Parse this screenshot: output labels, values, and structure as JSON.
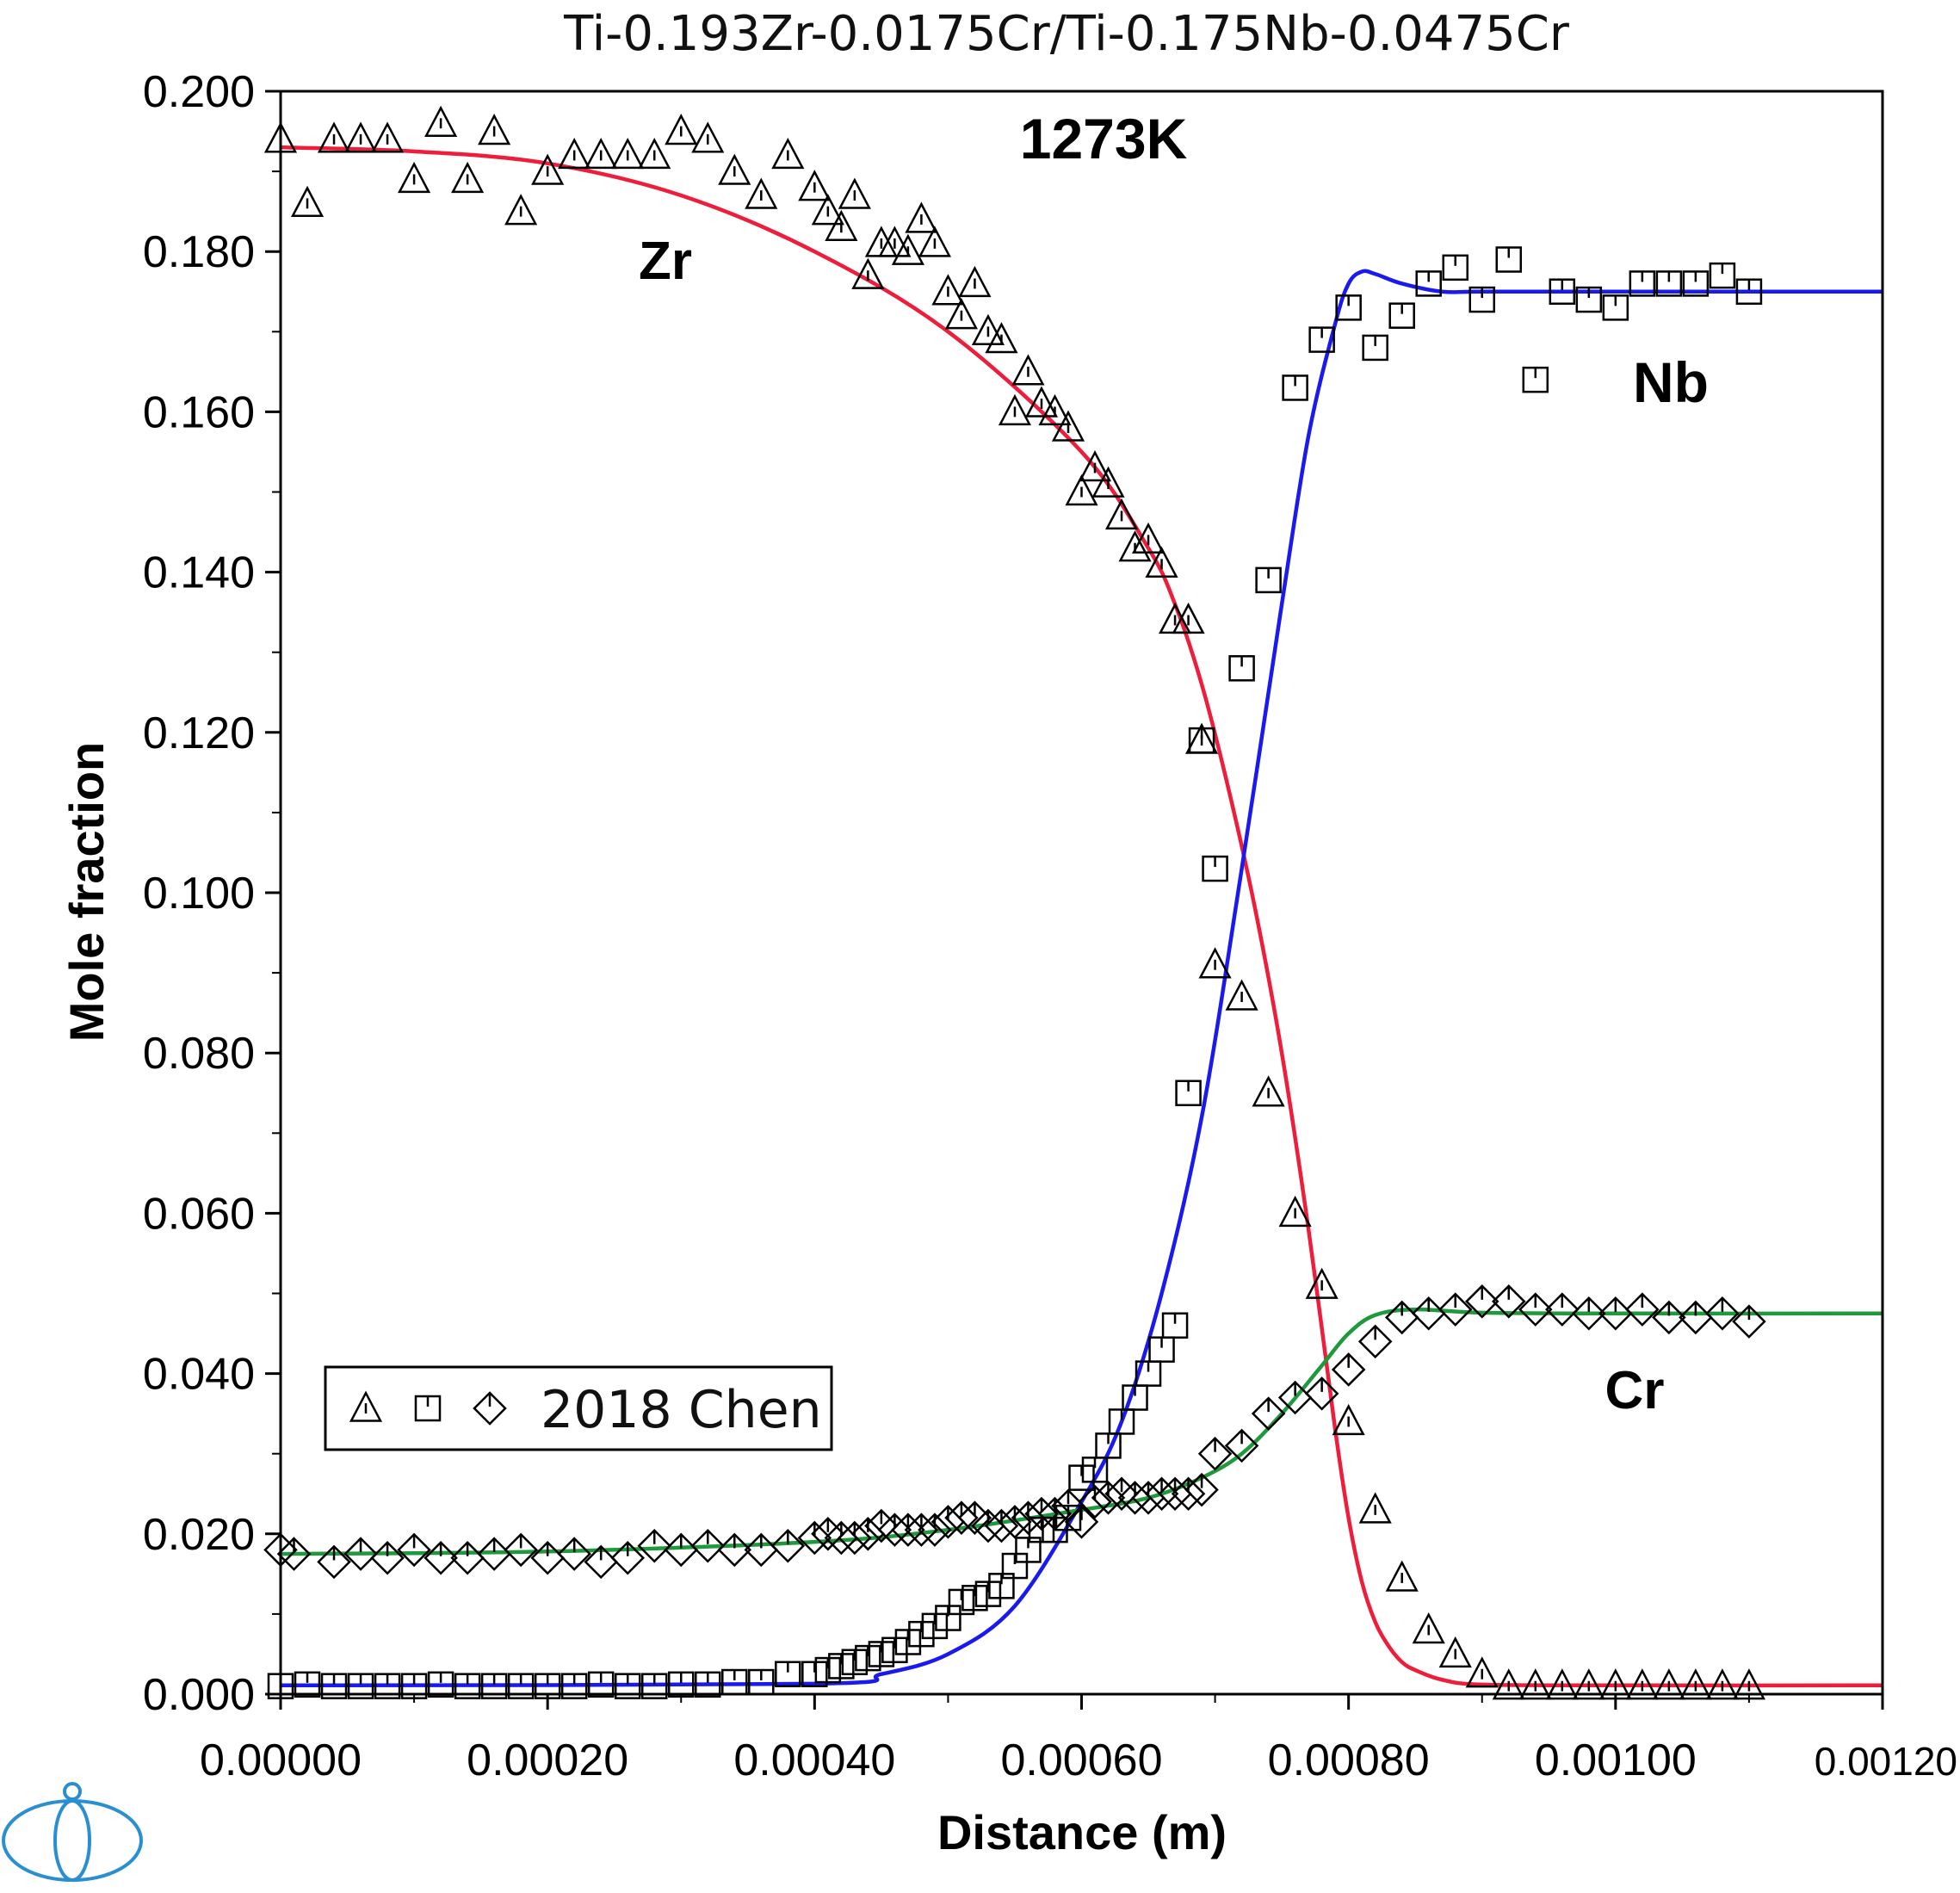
{
  "chart_data": {
    "type": "scatter",
    "title": "Ti-0.193Zr-0.0175Cr/Ti-0.175Nb-0.0475Cr",
    "temperature_label": "1273K",
    "xlabel": "Distance (m)",
    "ylabel": "Mole fraction",
    "xlim": [
      0,
      0.0012
    ],
    "ylim": [
      0,
      0.2
    ],
    "x_ticks": [
      "0.00000",
      "0.00020",
      "0.00040",
      "0.00060",
      "0.00080",
      "0.00100",
      "0.00120"
    ],
    "y_ticks": [
      "0.000",
      "0.020",
      "0.040",
      "0.060",
      "0.080",
      "0.100",
      "0.120",
      "0.140",
      "0.160",
      "0.180",
      "0.200"
    ],
    "grid": false,
    "legend": {
      "placement": "bottom-left",
      "label": "2018 Chen",
      "markers": [
        "triangle",
        "square",
        "diamond"
      ]
    },
    "colors": {
      "Zr": "#ee1d3c",
      "Nb": "#1a1aee",
      "Cr": "#1e9a3c",
      "markers": "#000000"
    },
    "annotations": [
      "Zr",
      "Nb",
      "Cr"
    ],
    "calculated_curves": [
      {
        "label": "Zr",
        "color": "#ee1d3c",
        "x": [
          0,
          0.0001,
          0.0002,
          0.0003,
          0.0004,
          0.0005,
          0.0006,
          0.00065,
          0.00067,
          0.00069,
          0.00071,
          0.00073,
          0.00075,
          0.00077,
          0.00079,
          0.0008,
          0.00081,
          0.00082,
          0.00083,
          0.00084,
          0.00085,
          0.00087,
          0.0009,
          0.001,
          0.0012
        ],
        "y": [
          0.193,
          0.1925,
          0.191,
          0.187,
          0.18,
          0.17,
          0.155,
          0.143,
          0.136,
          0.126,
          0.113,
          0.098,
          0.08,
          0.058,
          0.033,
          0.022,
          0.014,
          0.009,
          0.006,
          0.004,
          0.003,
          0.0018,
          0.0012,
          0.0011,
          0.0011
        ]
      },
      {
        "label": "Nb",
        "color": "#1a1aee",
        "x": [
          0,
          0.0004,
          0.00045,
          0.0005,
          0.00055,
          0.0006,
          0.00063,
          0.00066,
          0.00069,
          0.00072,
          0.00075,
          0.00077,
          0.00079,
          0.0008,
          0.00081,
          0.00082,
          0.00084,
          0.00087,
          0.0009,
          0.001,
          0.0012
        ],
        "y": [
          0.0011,
          0.0013,
          0.0025,
          0.005,
          0.011,
          0.024,
          0.034,
          0.05,
          0.072,
          0.103,
          0.136,
          0.157,
          0.171,
          0.176,
          0.1775,
          0.1772,
          0.176,
          0.175,
          0.175,
          0.175,
          0.175
        ]
      },
      {
        "label": "Cr",
        "color": "#1e9a3c",
        "x": [
          0,
          0.0002,
          0.0004,
          0.0005,
          0.0006,
          0.00065,
          0.00069,
          0.00072,
          0.00075,
          0.00078,
          0.0008,
          0.00082,
          0.00085,
          0.0009,
          0.001,
          0.0012
        ],
        "y": [
          0.0175,
          0.0178,
          0.019,
          0.0205,
          0.023,
          0.0245,
          0.027,
          0.03,
          0.035,
          0.041,
          0.045,
          0.0473,
          0.048,
          0.0476,
          0.0475,
          0.0475
        ]
      }
    ],
    "series": [
      {
        "marker": "triangle",
        "element": "Zr",
        "x": [
          0,
          2e-05,
          4e-05,
          6e-05,
          8e-05,
          0.0001,
          0.00012,
          0.00014,
          0.00016,
          0.00018,
          0.0002,
          0.00022,
          0.00024,
          0.00026,
          0.00028,
          0.0003,
          0.00032,
          0.00034,
          0.00036,
          0.00038,
          0.0004,
          0.00041,
          0.00042,
          0.00043,
          0.00044,
          0.00045,
          0.00046,
          0.00047,
          0.00048,
          0.00049,
          0.0005,
          0.00051,
          0.00052,
          0.00053,
          0.00054,
          0.00055,
          0.00056,
          0.00057,
          0.00058,
          0.00059,
          0.0006,
          0.00061,
          0.00062,
          0.00063,
          0.00064,
          0.00065,
          0.00066,
          0.00067,
          0.00068,
          0.00069,
          0.0007,
          0.00072,
          0.00074,
          0.00076,
          0.00078,
          0.0008,
          0.00082,
          0.00084,
          0.00086,
          0.00088,
          0.0009,
          0.00092,
          0.00094,
          0.00096,
          0.00098,
          0.001,
          0.00102,
          0.00104,
          0.00106,
          0.00108,
          0.0011
        ],
        "y": [
          0.194,
          0.186,
          0.194,
          0.194,
          0.194,
          0.189,
          0.196,
          0.189,
          0.195,
          0.185,
          0.19,
          0.192,
          0.192,
          0.192,
          0.192,
          0.195,
          0.194,
          0.19,
          0.187,
          0.192,
          0.188,
          0.185,
          0.183,
          0.187,
          0.177,
          0.181,
          0.181,
          0.18,
          0.184,
          0.181,
          0.175,
          0.172,
          0.176,
          0.17,
          0.169,
          0.16,
          0.165,
          0.161,
          0.16,
          0.158,
          0.15,
          0.153,
          0.151,
          0.147,
          0.143,
          0.144,
          0.141,
          0.134,
          0.134,
          0.119,
          0.091,
          0.087,
          0.075,
          0.06,
          0.051,
          0.034,
          0.023,
          0.0145,
          0.008,
          0.005,
          0.0025,
          0.001,
          0.001,
          0.001,
          0.001,
          0.001,
          0.001,
          0.001,
          0.001,
          0.001,
          0.001
        ]
      },
      {
        "marker": "square",
        "element": "Nb",
        "x": [
          0,
          2e-05,
          4e-05,
          6e-05,
          8e-05,
          0.0001,
          0.00012,
          0.00014,
          0.00016,
          0.00018,
          0.0002,
          0.00022,
          0.00024,
          0.00026,
          0.00028,
          0.0003,
          0.00032,
          0.00034,
          0.00036,
          0.00038,
          0.0004,
          0.00041,
          0.00042,
          0.00043,
          0.00044,
          0.00045,
          0.00046,
          0.00047,
          0.00048,
          0.00049,
          0.0005,
          0.00051,
          0.00052,
          0.00053,
          0.00054,
          0.00055,
          0.00056,
          0.00057,
          0.00058,
          0.00059,
          0.0006,
          0.00061,
          0.00062,
          0.00063,
          0.00064,
          0.00065,
          0.00066,
          0.00067,
          0.00068,
          0.00069,
          0.0007,
          0.00072,
          0.00074,
          0.00076,
          0.00078,
          0.0008,
          0.00082,
          0.00084,
          0.00086,
          0.00088,
          0.0009,
          0.00092,
          0.00094,
          0.00096,
          0.00098,
          0.001,
          0.00102,
          0.00104,
          0.00106,
          0.00108,
          0.0011
        ],
        "y": [
          0.001,
          0.0012,
          0.001,
          0.001,
          0.001,
          0.001,
          0.0012,
          0.001,
          0.001,
          0.001,
          0.001,
          0.001,
          0.0012,
          0.001,
          0.001,
          0.0012,
          0.0012,
          0.0015,
          0.0015,
          0.0025,
          0.0025,
          0.003,
          0.0035,
          0.004,
          0.0045,
          0.005,
          0.0055,
          0.0065,
          0.0075,
          0.0085,
          0.0095,
          0.0115,
          0.012,
          0.0125,
          0.0135,
          0.016,
          0.018,
          0.0205,
          0.0205,
          0.022,
          0.027,
          0.028,
          0.031,
          0.034,
          0.037,
          0.04,
          0.043,
          0.046,
          0.075,
          0.119,
          0.103,
          0.128,
          0.139,
          0.163,
          0.169,
          0.173,
          0.168,
          0.172,
          0.176,
          0.178,
          0.174,
          0.179,
          0.164,
          0.175,
          0.174,
          0.173,
          0.176,
          0.176,
          0.176,
          0.177,
          0.175
        ]
      },
      {
        "marker": "diamond",
        "element": "Cr",
        "x": [
          0,
          1e-05,
          4e-05,
          6e-05,
          8e-05,
          0.0001,
          0.00012,
          0.00014,
          0.00016,
          0.00018,
          0.0002,
          0.00022,
          0.00024,
          0.00026,
          0.00028,
          0.0003,
          0.00032,
          0.00034,
          0.00036,
          0.00038,
          0.0004,
          0.00041,
          0.00042,
          0.00043,
          0.00044,
          0.00045,
          0.00046,
          0.00047,
          0.00048,
          0.00049,
          0.0005,
          0.00051,
          0.00052,
          0.00053,
          0.00054,
          0.00055,
          0.00056,
          0.00057,
          0.00058,
          0.00059,
          0.0006,
          0.00061,
          0.00062,
          0.00063,
          0.00064,
          0.00065,
          0.00066,
          0.00067,
          0.00068,
          0.00069,
          0.0007,
          0.00072,
          0.00074,
          0.00076,
          0.00078,
          0.0008,
          0.00082,
          0.00084,
          0.00086,
          0.00088,
          0.0009,
          0.00092,
          0.00094,
          0.00096,
          0.00098,
          0.001,
          0.00102,
          0.00104,
          0.00106,
          0.00108,
          0.0011
        ],
        "y": [
          0.018,
          0.0175,
          0.0165,
          0.0175,
          0.017,
          0.018,
          0.017,
          0.017,
          0.0175,
          0.018,
          0.017,
          0.0175,
          0.0165,
          0.017,
          0.0185,
          0.018,
          0.0185,
          0.018,
          0.018,
          0.0185,
          0.0195,
          0.02,
          0.0195,
          0.0195,
          0.02,
          0.021,
          0.0205,
          0.0205,
          0.0205,
          0.0205,
          0.0215,
          0.022,
          0.022,
          0.021,
          0.021,
          0.0215,
          0.022,
          0.0225,
          0.0225,
          0.0235,
          0.0215,
          0.024,
          0.0245,
          0.025,
          0.0245,
          0.0245,
          0.025,
          0.025,
          0.025,
          0.0255,
          0.03,
          0.031,
          0.035,
          0.037,
          0.0375,
          0.0405,
          0.044,
          0.047,
          0.0475,
          0.048,
          0.049,
          0.049,
          0.048,
          0.048,
          0.0475,
          0.0475,
          0.048,
          0.047,
          0.047,
          0.0475,
          0.0465
        ]
      }
    ]
  }
}
